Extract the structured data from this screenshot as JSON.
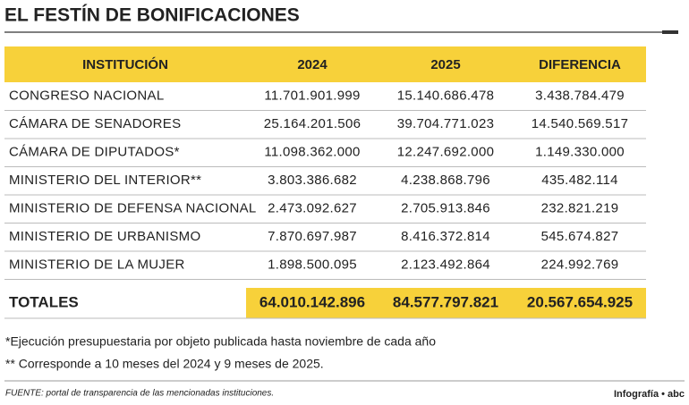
{
  "title": "EL FESTÍN DE BONIFICACIONES",
  "table": {
    "headers": [
      "INSTITUCIÓN",
      "2024",
      "2025",
      "DIFERENCIA"
    ],
    "rows": [
      [
        "CONGRESO NACIONAL",
        "11.701.901.999",
        "15.140.686.478",
        "3.438.784.479"
      ],
      [
        "CÁMARA DE SENADORES",
        "25.164.201.506",
        "39.704.771.023",
        "14.540.569.517"
      ],
      [
        "CÁMARA DE DIPUTADOS*",
        "11.098.362.000",
        "12.247.692.000",
        "1.149.330.000"
      ],
      [
        "MINISTERIO DEL INTERIOR**",
        "3.803.386.682",
        "4.238.868.796",
        "435.482.114"
      ],
      [
        "MINISTERIO DE DEFENSA NACIONAL",
        "2.473.092.627",
        "2.705.913.846",
        "232.821.219"
      ],
      [
        "MINISTERIO DE URBANISMO",
        "7.870.697.987",
        "8.416.372.814",
        "545.674.827"
      ],
      [
        "MINISTERIO DE LA MUJER",
        "1.898.500.095",
        "2.123.492.864",
        "224.992.769"
      ]
    ],
    "totals": [
      "TOTALES",
      "64.010.142.896",
      "84.577.797.821",
      "20.567.654.925"
    ]
  },
  "notes": [
    "*Ejecución presupuestaria por objeto publicada hasta noviembre de cada año",
    "** Corresponde a 10 meses del 2024 y 9 meses de 2025."
  ],
  "source": "FUENTE: portal de transparencia de las mencionadas instituciones.",
  "credit": "Infografía • abc"
}
